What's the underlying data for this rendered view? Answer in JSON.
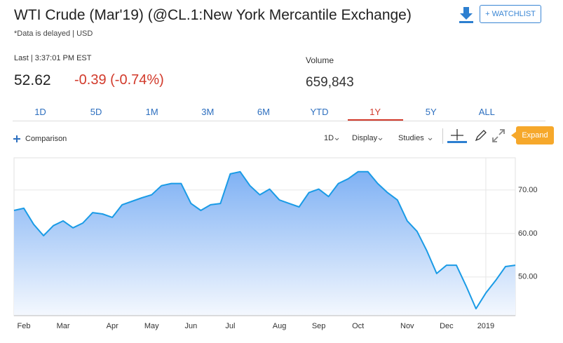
{
  "header": {
    "title": "WTI Crude (Mar'19) (@CL.1:New York Mercantile Exchange)",
    "subtitle": "*Data is delayed | USD",
    "watchlist": "+ WATCHLIST",
    "last_label": "Last | 3:37:01 PM EST",
    "price": "52.62",
    "change": "-0.39 (-0.74%)",
    "volume_label": "Volume",
    "volume": "659,843"
  },
  "ranges": {
    "items": [
      "1D",
      "5D",
      "1M",
      "3M",
      "6M",
      "YTD",
      "1Y",
      "5Y",
      "ALL"
    ],
    "selected": "1Y"
  },
  "toolbar": {
    "comparison": "Comparison",
    "interval": "1D",
    "display": "Display",
    "studies": "Studies",
    "expand": "Expand"
  },
  "chart_data": {
    "type": "area",
    "color": "#1a9be6",
    "categories": [
      null,
      "Feb",
      null,
      null,
      null,
      "Mar",
      null,
      null,
      null,
      null,
      "Apr",
      null,
      null,
      null,
      "May",
      null,
      null,
      null,
      "Jun",
      null,
      null,
      null,
      "Jul",
      null,
      null,
      null,
      null,
      "Aug",
      null,
      null,
      null,
      "Sep",
      null,
      null,
      null,
      "Oct",
      null,
      null,
      null,
      null,
      "Nov",
      null,
      null,
      null,
      "Dec",
      null,
      null,
      null,
      "2019",
      null,
      null,
      null
    ],
    "values": [
      65.3,
      65.8,
      62.1,
      59.5,
      61.8,
      62.9,
      61.3,
      62.4,
      64.8,
      64.5,
      63.7,
      66.6,
      67.4,
      68.2,
      68.9,
      71.0,
      71.5,
      71.5,
      66.9,
      65.3,
      66.6,
      66.9,
      73.7,
      74.2,
      71.0,
      68.9,
      70.2,
      67.7,
      66.9,
      66.1,
      69.4,
      70.2,
      68.5,
      71.5,
      72.6,
      74.2,
      74.2,
      71.5,
      69.4,
      67.7,
      62.9,
      60.5,
      56.0,
      50.8,
      52.7,
      52.7,
      47.9,
      42.7,
      46.3,
      49.2,
      52.4,
      52.7
    ],
    "ylim": [
      41.1,
      77.4
    ],
    "yticks": [
      {
        "value": 50,
        "label": "50.00"
      },
      {
        "value": 60,
        "label": "60.00"
      },
      {
        "value": 70,
        "label": "70.00"
      }
    ],
    "grid": true
  }
}
